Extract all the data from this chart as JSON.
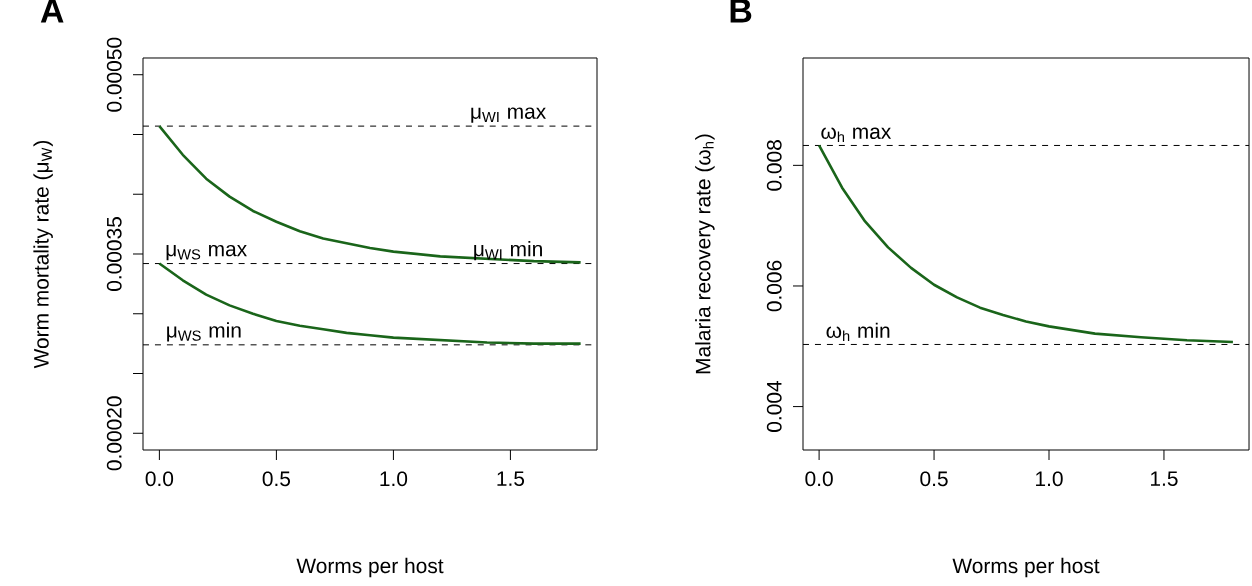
{
  "chart_data": [
    {
      "type": "line",
      "title": "A",
      "xlabel": "Worms per host",
      "ylabel": "Worm mortality rate (μ$_{W}$)",
      "x": [
        0,
        0.1,
        0.2,
        0.3,
        0.4,
        0.5,
        0.6,
        0.7,
        0.8,
        0.9,
        1.0,
        1.2,
        1.4,
        1.6,
        1.8
      ],
      "xlim": [
        -0.07,
        1.87
      ],
      "ylim": [
        0.000186,
        0.000514
      ],
      "xticks": [
        {
          "value": 0,
          "label": "0.0"
        },
        {
          "value": 0.5,
          "label": "0.5"
        },
        {
          "value": 1,
          "label": "1.0"
        },
        {
          "value": 1.5,
          "label": "1.5"
        }
      ],
      "yticks": [
        {
          "value": 0.0002,
          "label": "0.00020"
        },
        {
          "value": 0.00025,
          "label": null
        },
        {
          "value": 0.0003,
          "label": null
        },
        {
          "value": 0.00035,
          "label": "0.00035"
        },
        {
          "value": 0.0004,
          "label": null
        },
        {
          "value": 0.00045,
          "label": null
        },
        {
          "value": 0.0005,
          "label": "0.00050"
        }
      ],
      "series": [
        {
          "color": "#1a651a",
          "values": [
            0.000457,
            0.000433,
            0.000413,
            0.000398,
            0.000386,
            0.000377,
            0.000369,
            0.000363,
            0.000359,
            0.000355,
            0.000352,
            0.000348,
            0.000346,
            0.000344,
            0.000343
          ]
        },
        {
          "color": "#1a651a",
          "values": [
            0.000342,
            0.000328,
            0.000316,
            0.000307,
            0.0003,
            0.000294,
            0.00029,
            0.000287,
            0.000284,
            0.000282,
            0.00028,
            0.000278,
            0.000276,
            0.000275,
            0.000275
          ]
        }
      ],
      "ref_lines": [
        {
          "axis": "y",
          "value": 0.000457,
          "color": "#000000",
          "line_style": "dashed"
        },
        {
          "axis": "y",
          "value": 0.000342,
          "color": "#000000",
          "line_style": "dashed"
        },
        {
          "axis": "y",
          "value": 0.000274,
          "color": "#000000",
          "line_style": "dashed"
        }
      ],
      "annotations": [
        {
          "text": "μ$_{WI}$ max",
          "x": 1.49,
          "y": 0.000457
        },
        {
          "text": "μ$_{WI}$ min",
          "x": 1.49,
          "y": 0.000342
        },
        {
          "text": "μ$_{WS}$ max",
          "x": 0.2,
          "y": 0.000342
        },
        {
          "text": "μ$_{WS}$ min",
          "x": 0.19,
          "y": 0.000274
        }
      ]
    },
    {
      "type": "line",
      "title": "B",
      "xlabel": "Worms per host",
      "ylabel": "Malaria recovery rate (ω$_{h}$)",
      "x": [
        0,
        0.1,
        0.2,
        0.3,
        0.4,
        0.5,
        0.6,
        0.7,
        0.8,
        0.9,
        1.0,
        1.2,
        1.4,
        1.6,
        1.8
      ],
      "xlim": [
        -0.07,
        1.87
      ],
      "ylim": [
        0.00328,
        0.00978
      ],
      "xticks": [
        {
          "value": 0,
          "label": "0.0"
        },
        {
          "value": 0.5,
          "label": "0.5"
        },
        {
          "value": 1,
          "label": "1.0"
        },
        {
          "value": 1.5,
          "label": "1.5"
        }
      ],
      "yticks": [
        0.004,
        0.006,
        0.008
      ],
      "series": [
        {
          "color": "#1a651a",
          "values": [
            0.00833,
            0.00763,
            0.00707,
            0.00664,
            0.0063,
            0.00602,
            0.00581,
            0.00564,
            0.00552,
            0.00541,
            0.00533,
            0.00521,
            0.00515,
            0.0051,
            0.00507
          ]
        }
      ],
      "ref_lines": [
        {
          "axis": "y",
          "value": 0.00833,
          "color": "#000000",
          "line_style": "dashed"
        },
        {
          "axis": "y",
          "value": 0.00503,
          "color": "#000000",
          "line_style": "dashed"
        }
      ],
      "annotations": [
        {
          "text": "ω$_{h}$ max",
          "x": 0.16,
          "y": 0.00833
        },
        {
          "text": "ω$_{h}$ min",
          "x": 0.17,
          "y": 0.00503
        }
      ]
    }
  ]
}
